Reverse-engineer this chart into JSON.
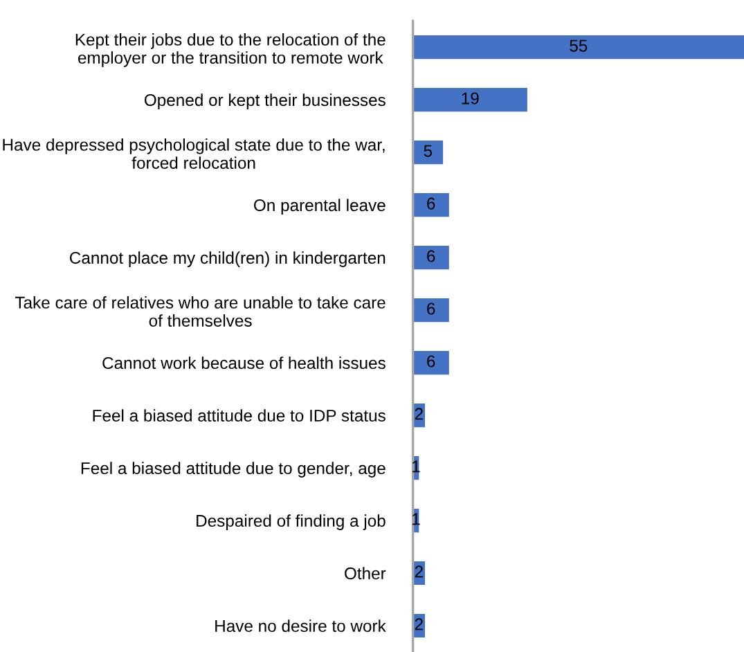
{
  "chart_data": {
    "type": "bar",
    "orientation": "horizontal",
    "categories": [
      "Kept their jobs due to the relocation of the\nemployer or the transition to remote work",
      "Opened or kept their businesses",
      "Have depressed psychological state due to the war,\nforced relocation",
      "On parental leave",
      "Cannot place my child(ren) in kindergarten",
      "Take care of relatives who are unable to take care\nof themselves",
      "Cannot work because of health issues",
      "Feel a biased attitude due to IDP status",
      "Feel a biased attitude due to gender, age",
      "Despaired of finding a job",
      "Other",
      "Have no desire to work"
    ],
    "values": [
      55,
      19,
      5,
      6,
      6,
      6,
      6,
      2,
      1,
      1,
      2,
      2
    ],
    "color": "#4472c4",
    "data_labels": true,
    "tick_labels": "y"
  }
}
